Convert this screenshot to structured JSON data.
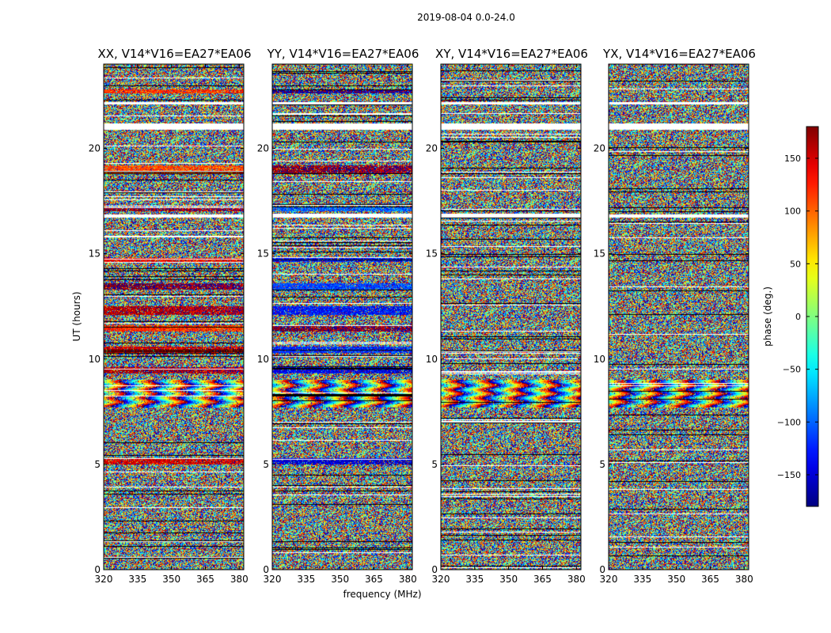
{
  "chart_data": {
    "type": "heatmap",
    "suptitle": "2019-08-04 0.0-24.0",
    "xlabel": "frequency (MHz)",
    "ylabel": "UT (hours)",
    "xlim": [
      320,
      382
    ],
    "ylim": [
      0,
      24
    ],
    "xticks": [
      "320",
      "335",
      "350",
      "365",
      "380"
    ],
    "xtick_values": [
      320,
      335,
      350,
      365,
      380
    ],
    "yticks": [
      "0",
      "5",
      "10",
      "15",
      "20"
    ],
    "ytick_values": [
      0,
      5,
      10,
      15,
      20
    ],
    "panels": [
      {
        "title": "XX, V14*V16=EA27*EA06",
        "coherent_bands": [
          [
            5.0,
            5.3,
            150
          ],
          [
            9.3,
            9.6,
            165
          ],
          [
            10.3,
            10.6,
            150
          ],
          [
            11.3,
            11.6,
            120
          ],
          [
            12.1,
            12.5,
            160
          ],
          [
            13.3,
            13.6,
            175
          ],
          [
            14.6,
            14.8,
            140
          ],
          [
            18.8,
            19.2,
            110
          ],
          [
            17.0,
            17.2,
            170
          ],
          [
            22.6,
            22.8,
            120
          ]
        ]
      },
      {
        "title": "YY, V14*V16=EA27*EA06",
        "coherent_bands": [
          [
            5.0,
            5.3,
            -150
          ],
          [
            9.3,
            9.6,
            -140
          ],
          [
            10.3,
            10.6,
            -120
          ],
          [
            11.3,
            11.6,
            175
          ],
          [
            12.1,
            12.5,
            -130
          ],
          [
            13.3,
            13.6,
            -110
          ],
          [
            14.6,
            14.8,
            -130
          ],
          [
            18.8,
            19.2,
            170
          ],
          [
            17.0,
            17.2,
            -100
          ],
          [
            22.6,
            22.8,
            -170
          ]
        ]
      },
      {
        "title": "XY, V14*V16=EA27*EA06",
        "coherent_bands": []
      },
      {
        "title": "YX, V14*V16=EA27*EA06",
        "coherent_bands": []
      }
    ],
    "fringe_band": [
      7.7,
      9.0
    ],
    "flagged_hours": [
      [
        20.9,
        21.2
      ],
      [
        16.7,
        16.85
      ],
      [
        22.1,
        22.2
      ]
    ],
    "colorbar": {
      "label": "phase (deg.)",
      "range": [
        -180,
        180
      ],
      "ticks": [
        "150",
        "100",
        "50",
        "0",
        "−50",
        "−100",
        "−150"
      ],
      "tick_values": [
        150,
        100,
        50,
        0,
        -50,
        -100,
        -150
      ],
      "colormap": "jet"
    }
  }
}
